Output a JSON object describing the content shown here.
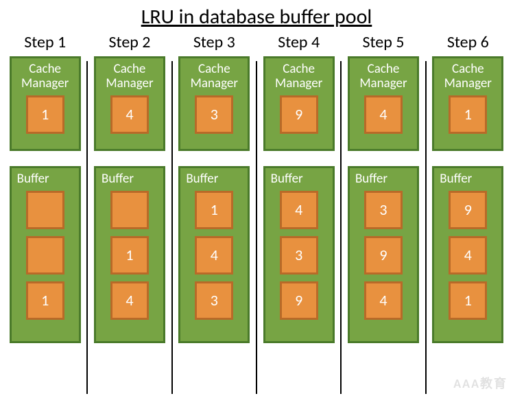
{
  "title": "LRU in database buffer pool",
  "colors": {
    "outer_fill": "#77a444",
    "outer_border": "#4a7a2a",
    "inner_fill": "#e8913f",
    "inner_border": "#b86a28",
    "text_white": "#ffffff",
    "text_black": "#000000",
    "divider": "#000000",
    "background": "#ffffff"
  },
  "styling": {
    "outer_border_width": 3,
    "inner_border_width": 3,
    "title_fontsize": 30,
    "step_label_fontsize": 24,
    "box_label_fontsize": 19,
    "slot_fontsize": 22,
    "cache_box_w": 104,
    "cache_box_h": 138,
    "buffer_box_w": 104,
    "buffer_box_h": 258,
    "slot_size": 56,
    "gap_between_boxes": 22
  },
  "cache_label": "Cache Manager",
  "buffer_label": "Buffer",
  "steps": [
    {
      "label": "Step 1",
      "cache": "1",
      "buffer": [
        "",
        "",
        "1"
      ]
    },
    {
      "label": "Step 2",
      "cache": "4",
      "buffer": [
        "",
        "1",
        "4"
      ]
    },
    {
      "label": "Step 3",
      "cache": "3",
      "buffer": [
        "1",
        "4",
        "3"
      ]
    },
    {
      "label": "Step 4",
      "cache": "9",
      "buffer": [
        "4",
        "3",
        "9"
      ]
    },
    {
      "label": "Step 5",
      "cache": "4",
      "buffer": [
        "3",
        "9",
        "4"
      ]
    },
    {
      "label": "Step 6",
      "cache": "1",
      "buffer": [
        "9",
        "4",
        "1"
      ]
    }
  ],
  "watermark": "AAA教育"
}
